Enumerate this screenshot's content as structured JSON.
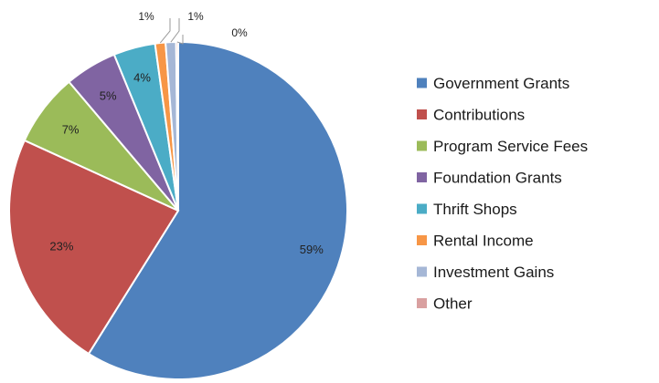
{
  "chart_data": {
    "type": "pie",
    "title": "",
    "legend_position": "right",
    "slices": [
      {
        "name": "Government Grants",
        "value": 59,
        "label": "59%",
        "color": "#4f81bd"
      },
      {
        "name": "Contributions",
        "value": 23,
        "label": "23%",
        "color": "#c0504d"
      },
      {
        "name": "Program Service Fees",
        "value": 7,
        "label": "7%",
        "color": "#9bbb59"
      },
      {
        "name": "Foundation Grants",
        "value": 5,
        "label": "5%",
        "color": "#8064a2"
      },
      {
        "name": "Thrift Shops",
        "value": 4,
        "label": "4%",
        "color": "#4bacc6"
      },
      {
        "name": "Rental Income",
        "value": 1,
        "label": "1%",
        "color": "#f79646"
      },
      {
        "name": "Investment Gains",
        "value": 1,
        "label": "1%",
        "color": "#a5b7d6"
      },
      {
        "name": "Other",
        "value": 0,
        "label": "0%",
        "color": "#d9a0a0"
      }
    ]
  }
}
